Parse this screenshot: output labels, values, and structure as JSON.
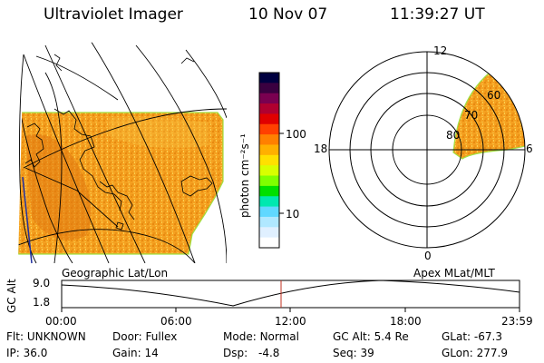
{
  "header": {
    "instrument": "Ultraviolet Imager",
    "date": "10 Nov 07",
    "time": "11:39:27 UT"
  },
  "colorbar": {
    "unit_label": "photon cm⁻²s⁻¹",
    "ticks": [
      "100",
      "10"
    ],
    "colors": [
      "#000040",
      "#3a0040",
      "#7a0050",
      "#b00030",
      "#e00000",
      "#ff4000",
      "#ff8000",
      "#ffb000",
      "#ffe000",
      "#d8ff00",
      "#80ff00",
      "#00e000",
      "#00e8b0",
      "#60d8ff",
      "#b0e8ff",
      "#e0f0ff",
      "#ffffff"
    ]
  },
  "map_left": {
    "caption": "Geographic Lat/Lon",
    "fill_color": "#f5a020",
    "dark_color": "#e07810"
  },
  "polar_right": {
    "caption": "Apex MLat/MLT",
    "mlt_labels": [
      "12",
      "18",
      "6",
      "0"
    ],
    "mlat_labels": [
      "60",
      "70",
      "80"
    ]
  },
  "altitude_plot": {
    "ylabel": "GC Alt",
    "yticks": [
      "9.0",
      "1.8"
    ],
    "xticks": [
      "00:00",
      "06:00",
      "12:00",
      "18:00",
      "23:59"
    ]
  },
  "footer": {
    "flt_label": "Flt:",
    "flt_value": "UNKNOWN",
    "ip_label": "IP:",
    "ip_value": "36.0",
    "door_label": "Door:",
    "door_value": "Fullex",
    "gain_label": "Gain:",
    "gain_value": "14",
    "mode_label": "Mode:",
    "mode_value": "Normal",
    "dsp_label": "Dsp:",
    "dsp_value": "-4.8",
    "gcalt_label": "GC Alt:",
    "gcalt_value": "5.4 Re",
    "seq_label": "Seq:",
    "seq_value": "39",
    "glat_label": "GLat:",
    "glat_value": "-67.3",
    "glon_label": "GLon:",
    "glon_value": "277.9"
  }
}
